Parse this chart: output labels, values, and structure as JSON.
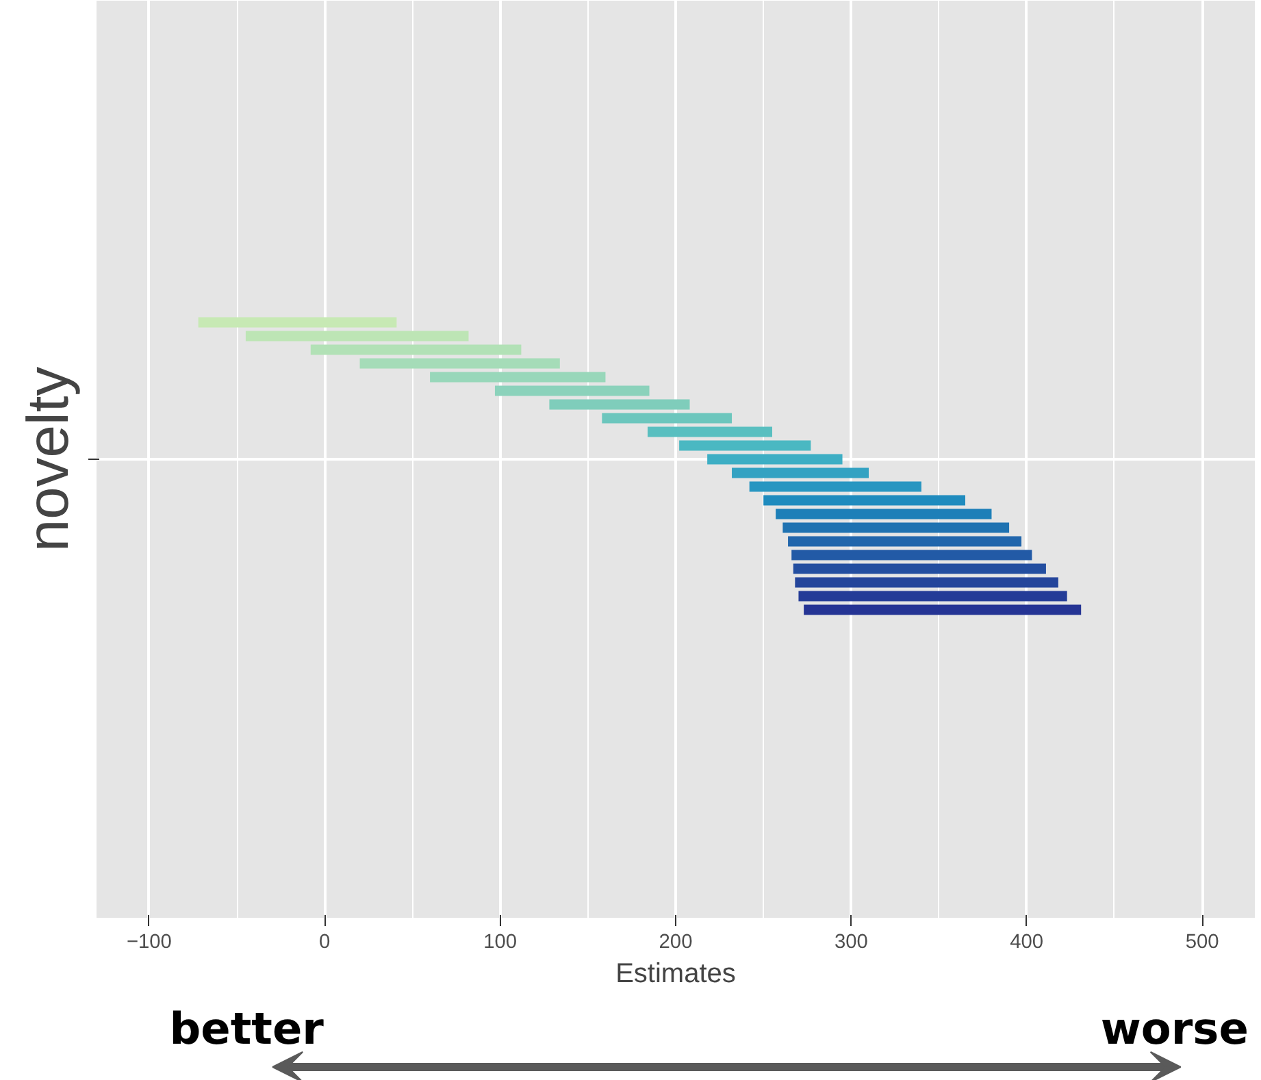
{
  "chart_data": {
    "type": "bar",
    "orientation": "horizontal",
    "xlabel": "Estimates",
    "ylabel": "novelty",
    "categories": [
      null,
      null,
      null,
      null,
      null,
      null,
      null,
      null,
      null,
      null,
      null,
      null,
      null,
      null,
      null,
      null,
      null,
      null,
      null,
      null,
      null,
      null,
      null,
      null,
      null,
      null,
      null,
      null,
      null,
      null,
      null,
      null,
      null,
      null,
      null,
      null,
      null,
      null,
      null,
      null,
      null,
      null,
      null,
      null,
      null,
      null,
      null,
      null,
      null,
      null,
      null,
      null,
      null,
      null,
      null,
      null,
      null,
      null,
      null,
      null,
      null,
      null,
      null,
      null,
      null,
      null,
      null
    ],
    "base": [
      null,
      null,
      null,
      null,
      null,
      null,
      null,
      null,
      null,
      null,
      null,
      null,
      null,
      null,
      null,
      null,
      null,
      null,
      null,
      null,
      null,
      null,
      null,
      -72,
      -45,
      -8,
      20,
      60,
      97,
      128,
      158,
      184,
      202,
      218,
      232,
      242,
      250,
      257,
      261,
      264,
      266,
      267,
      268,
      270,
      273,
      null,
      null,
      null,
      null,
      null,
      null,
      null,
      null,
      null,
      null,
      null,
      null,
      null,
      null,
      null,
      null,
      null,
      null,
      null,
      null,
      null,
      null
    ],
    "values": [
      null,
      null,
      null,
      null,
      null,
      null,
      null,
      null,
      null,
      null,
      null,
      null,
      null,
      null,
      null,
      null,
      null,
      null,
      null,
      null,
      null,
      null,
      null,
      113,
      127,
      120,
      114,
      100,
      88,
      80,
      74,
      71,
      75,
      77,
      78,
      98,
      115,
      123,
      129,
      133,
      137,
      144,
      150,
      153,
      158,
      null,
      null,
      null,
      null,
      null,
      null,
      null,
      null,
      null,
      null,
      null,
      null,
      null,
      null,
      null,
      null,
      null,
      null,
      null,
      null,
      null,
      null
    ],
    "colors": [
      "#c7e9b4",
      "#c7e9b4",
      "#c7e9b4",
      "#c7e9b4",
      "#c7e9b4",
      "#c7e9b4",
      "#c7e9b4",
      "#c7e9b4",
      "#c7e9b4",
      "#c7e9b4",
      "#c7e9b4",
      "#c7e9b4",
      "#c7e9b4",
      "#c7e9b4",
      "#c7e9b4",
      "#c7e9b4",
      "#c7e9b4",
      "#c7e9b4",
      "#c7e9b4",
      "#c7e9b4",
      "#c7e9b4",
      "#c7e9b4",
      "#c7e9b4",
      "#c7e9b4",
      "#bde5b5",
      "#b2e1b6",
      "#a5dcb8",
      "#98d7ba",
      "#8bd2bb",
      "#7fcdbb",
      "#6cc6bd",
      "#59bfc0",
      "#4ab8c2",
      "#3daec4",
      "#33a2c2",
      "#2896c1",
      "#1f8bbe",
      "#1d7fb8",
      "#1f72b1",
      "#2166ac",
      "#225aa6",
      "#234ea0",
      "#24459b",
      "#243c97",
      "#253494",
      "#253494",
      "#253494",
      "#253494",
      "#253494",
      "#253494",
      "#253494",
      "#253494",
      "#253494",
      "#253494",
      "#253494",
      "#253494",
      "#253494",
      "#253494",
      "#253494",
      "#253494",
      "#253494",
      "#253494",
      "#253494",
      "#253494",
      "#253494",
      "#253494",
      "#253494"
    ],
    "xlim": [
      -130,
      530
    ],
    "xticks": [
      -100,
      0,
      100,
      200,
      300,
      400,
      500
    ],
    "tick_labels": "x",
    "grid": true,
    "annotations": [
      "better",
      "worse"
    ]
  }
}
